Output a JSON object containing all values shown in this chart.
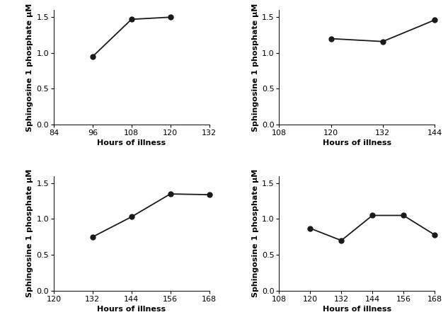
{
  "panels": [
    {
      "x": [
        96,
        108,
        120
      ],
      "y": [
        0.95,
        1.47,
        1.5
      ],
      "xlim": [
        84,
        132
      ],
      "xticks": [
        84,
        96,
        108,
        120,
        132
      ],
      "ylim": [
        0.0,
        1.6
      ],
      "yticks": [
        0.0,
        0.5,
        1.0,
        1.5
      ],
      "xlabel": "Hours of illness",
      "ylabel": "Sphingosine 1 phosphate μM"
    },
    {
      "x": [
        120,
        132,
        144
      ],
      "y": [
        1.2,
        1.16,
        1.46
      ],
      "xlim": [
        108,
        144
      ],
      "xticks": [
        108,
        120,
        132,
        144
      ],
      "ylim": [
        0.0,
        1.6
      ],
      "yticks": [
        0.0,
        0.5,
        1.0,
        1.5
      ],
      "xlabel": "Hours of illness",
      "ylabel": "Sphingosine 1 phosphate μM"
    },
    {
      "x": [
        132,
        144,
        156,
        168
      ],
      "y": [
        0.75,
        1.03,
        1.35,
        1.34
      ],
      "xlim": [
        120,
        168
      ],
      "xticks": [
        120,
        132,
        144,
        156,
        168
      ],
      "ylim": [
        0.0,
        1.6
      ],
      "yticks": [
        0.0,
        0.5,
        1.0,
        1.5
      ],
      "xlabel": "Hours of illness",
      "ylabel": "Sphingosine 1 phosphate μM"
    },
    {
      "x": [
        120,
        132,
        144,
        156,
        168
      ],
      "y": [
        0.87,
        0.7,
        1.05,
        1.05,
        0.78
      ],
      "xlim": [
        108,
        168
      ],
      "xticks": [
        108,
        120,
        132,
        144,
        156,
        168
      ],
      "ylim": [
        0.0,
        1.6
      ],
      "yticks": [
        0.0,
        0.5,
        1.0,
        1.5
      ],
      "xlabel": "Hours of illness",
      "ylabel": "Sphingosine 1 phosphate μM"
    }
  ],
  "line_color": "#1a1a1a",
  "marker": "o",
  "marker_size": 5,
  "marker_color": "#1a1a1a",
  "line_width": 1.3,
  "label_font_size": 8,
  "tick_font_size": 8,
  "background_color": "#ffffff"
}
